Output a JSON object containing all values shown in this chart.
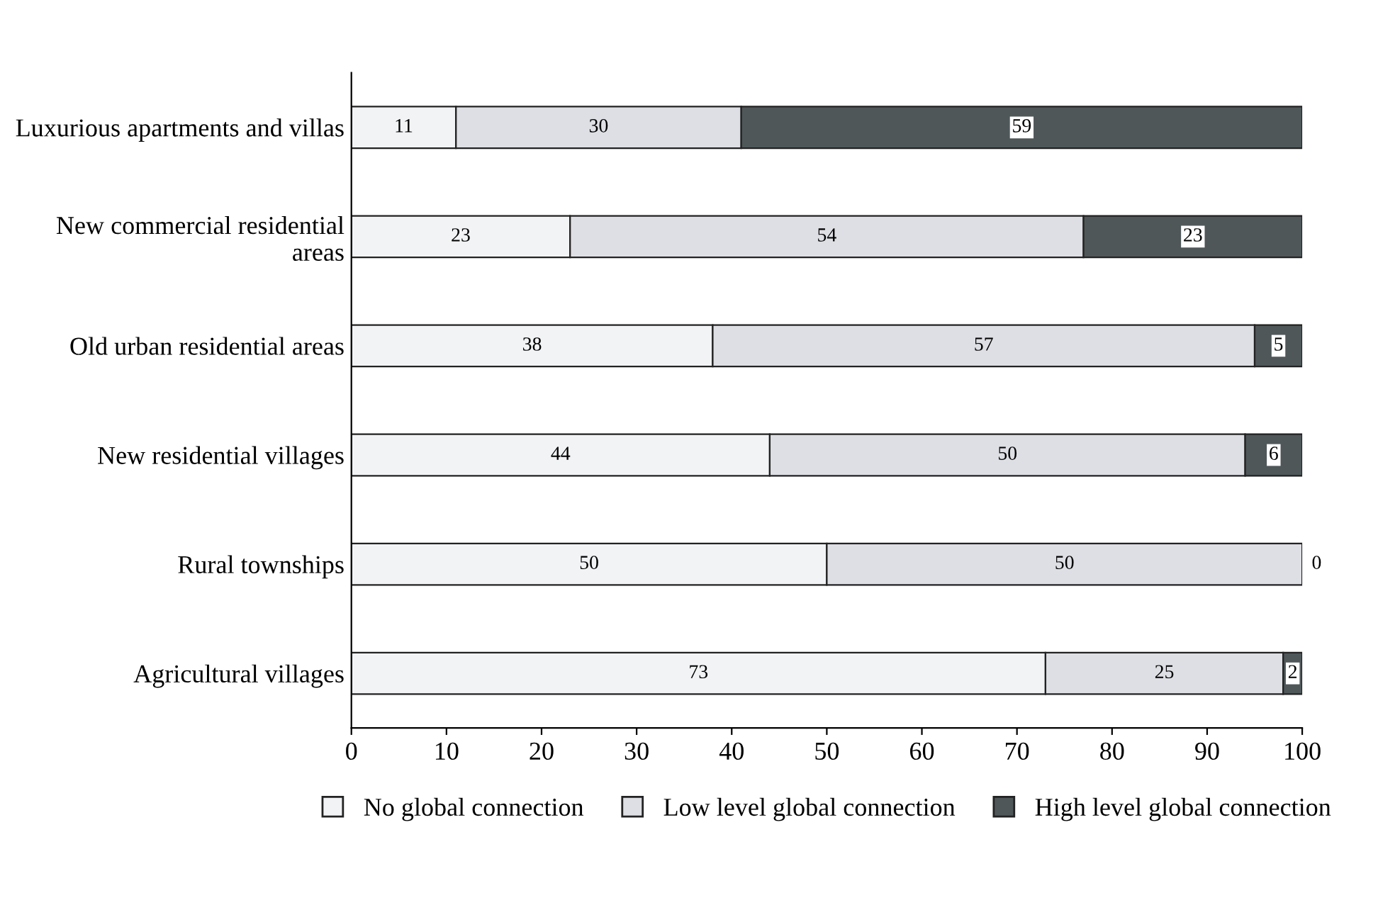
{
  "chart_data": {
    "type": "bar",
    "orientation": "horizontal",
    "stacked": true,
    "data_labels": true,
    "categories": [
      "Luxurious apartments and villas",
      "New commercial residential areas",
      "Old urban residential areas",
      "New residential villages",
      "Rural townships",
      "Agricultural villages"
    ],
    "series": [
      {
        "name": "No global connection",
        "color": "#f2f3f5",
        "values": [
          11,
          23,
          38,
          44,
          50,
          73
        ]
      },
      {
        "name": "Low level global connection",
        "color": "#dedfe4",
        "values": [
          30,
          54,
          57,
          50,
          50,
          25
        ]
      },
      {
        "name": "High level global connection",
        "color": "#4f5759",
        "values": [
          59,
          23,
          5,
          6,
          0,
          2
        ]
      }
    ],
    "xlim": [
      0,
      100
    ],
    "xticks": [
      0,
      10,
      20,
      30,
      40,
      50,
      60,
      70,
      80,
      90,
      100
    ],
    "grid": false,
    "legend": "bottom"
  }
}
